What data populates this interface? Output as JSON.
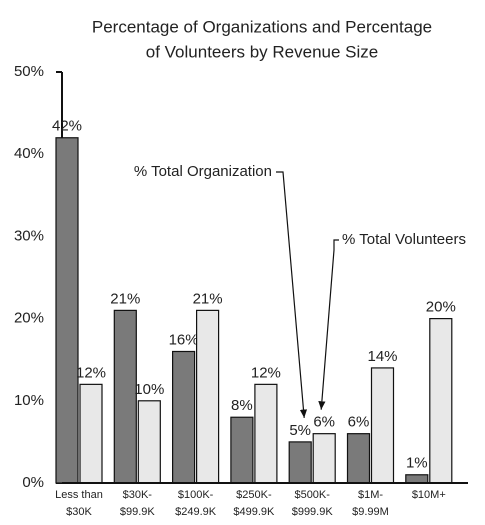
{
  "chart_data": {
    "type": "bar",
    "title": [
      "Percentage of Organizations and Percentage",
      "of Volunteers by Revenue Size"
    ],
    "categories": [
      [
        "Less than",
        "$30K"
      ],
      [
        "$30K-",
        "$99.9K"
      ],
      [
        "$100K-",
        "$249.9K"
      ],
      [
        "$250K-",
        "$499.9K"
      ],
      [
        "$500K-",
        "$999.9K"
      ],
      [
        "$1M-",
        "$9.99M"
      ],
      [
        "$10M+"
      ]
    ],
    "series": [
      {
        "name": "% Total Organization",
        "color": "#7a7a7a",
        "values": [
          42,
          21,
          16,
          8,
          5,
          6,
          1
        ],
        "value_labels": [
          "42%",
          "21%",
          "16%",
          "8%",
          "5%",
          "6%",
          "1%"
        ]
      },
      {
        "name": "% Total Volunteers",
        "color": "#e8e8e8",
        "values": [
          12,
          10,
          21,
          12,
          6,
          14,
          20
        ],
        "value_labels": [
          "12%",
          "10%",
          "21%",
          "12%",
          "6%",
          "14%",
          "20%"
        ]
      }
    ],
    "ylim": [
      0,
      50
    ],
    "yticks": [
      {
        "value": 0,
        "label": "0%"
      },
      {
        "value": 10,
        "label": "10%"
      },
      {
        "value": 20,
        "label": "20%"
      },
      {
        "value": 30,
        "label": "30%"
      },
      {
        "value": 40,
        "label": "40%"
      },
      {
        "value": 50,
        "label": "50%"
      }
    ]
  }
}
